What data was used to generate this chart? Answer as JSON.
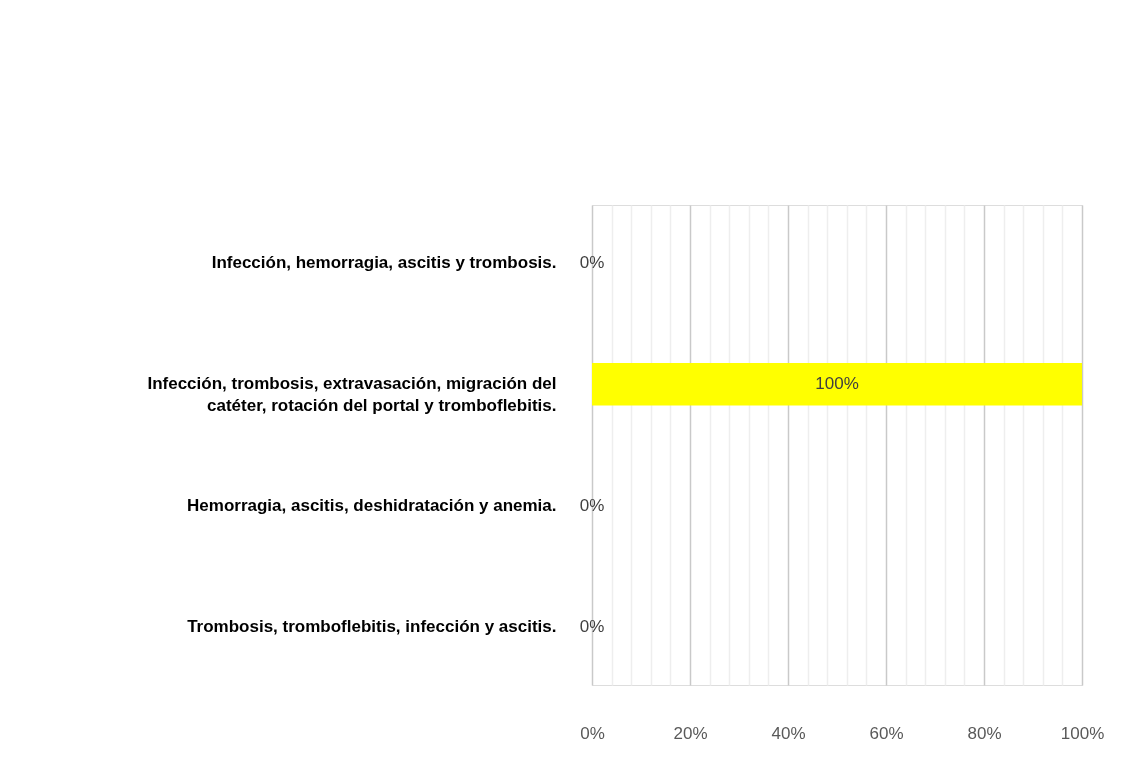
{
  "chart_data": {
    "type": "bar",
    "orientation": "horizontal",
    "categories": [
      "Infección, hemorragia, ascitis y trombosis.",
      "Infección, trombosis, extravasación, migración del catéter, rotación del portal y tromboflebitis.",
      "Hemorragia, ascitis, deshidratación y anemia.",
      "Trombosis, tromboflebitis, infección y ascitis."
    ],
    "values": [
      0,
      100,
      0,
      0
    ],
    "color": "#ffff00",
    "value_labels": [
      "0%",
      "100%",
      "0%",
      "0%"
    ],
    "xlim": [
      0,
      100
    ],
    "xticks": [
      {
        "value": 0,
        "label": "0%"
      },
      {
        "value": 4,
        "label": null
      },
      {
        "value": 8,
        "label": null
      },
      {
        "value": 12,
        "label": null
      },
      {
        "value": 16,
        "label": null
      },
      {
        "value": 20,
        "label": "20%"
      },
      {
        "value": 24,
        "label": null
      },
      {
        "value": 28,
        "label": null
      },
      {
        "value": 32,
        "label": null
      },
      {
        "value": 36,
        "label": null
      },
      {
        "value": 40,
        "label": "40%"
      },
      {
        "value": 44,
        "label": null
      },
      {
        "value": 48,
        "label": null
      },
      {
        "value": 52,
        "label": null
      },
      {
        "value": 56,
        "label": null
      },
      {
        "value": 60,
        "label": "60%"
      },
      {
        "value": 64,
        "label": null
      },
      {
        "value": 68,
        "label": null
      },
      {
        "value": 72,
        "label": null
      },
      {
        "value": 76,
        "label": null
      },
      {
        "value": 80,
        "label": "80%"
      },
      {
        "value": 84,
        "label": null
      },
      {
        "value": 88,
        "label": null
      },
      {
        "value": 92,
        "label": null
      },
      {
        "value": 96,
        "label": null
      },
      {
        "value": 100,
        "label": "100%"
      }
    ],
    "grid": "x"
  }
}
